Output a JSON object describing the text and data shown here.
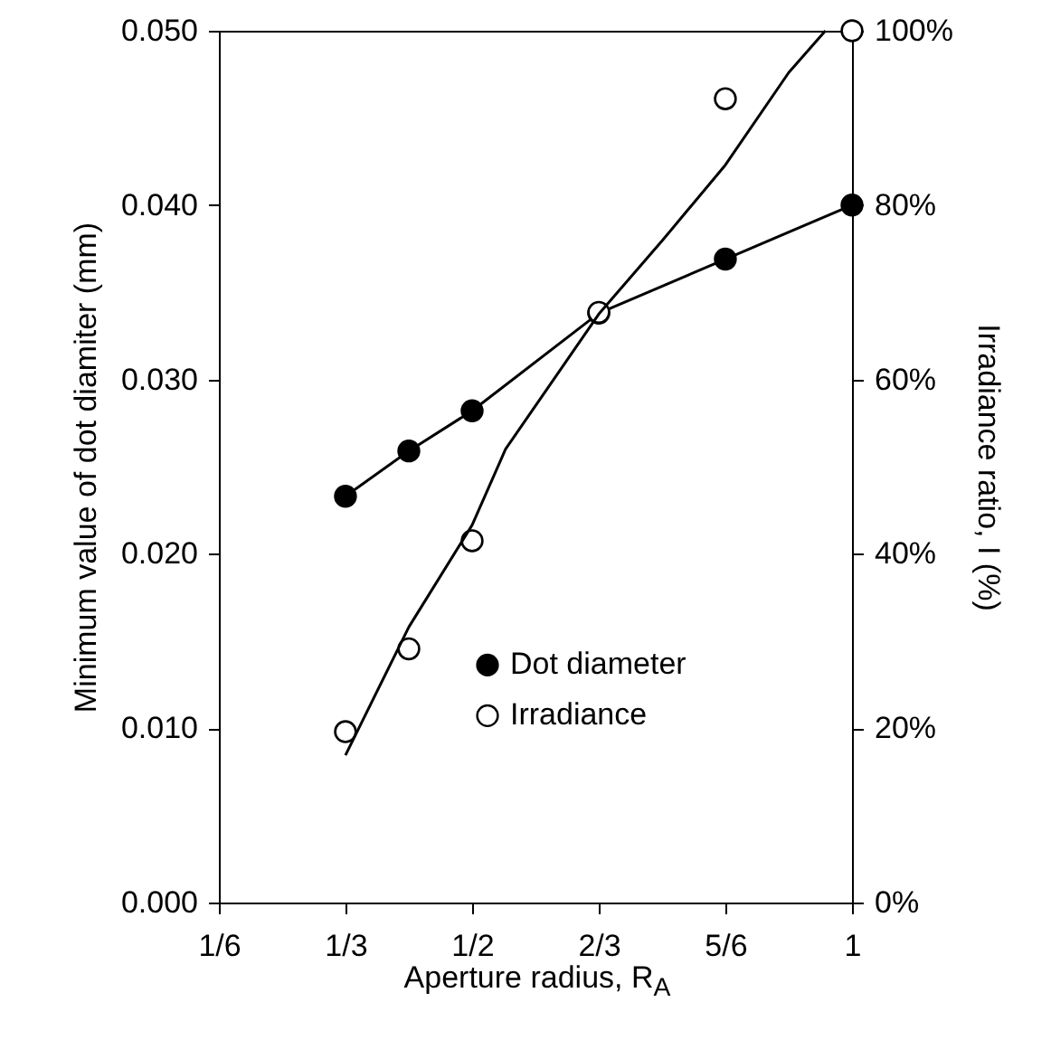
{
  "chart_data": {
    "type": "line",
    "xlabel": "Aperture radius, R$_{A}$",
    "ylabel": "Minimum value of dot diamiter (mm)",
    "y2label": "Irradiance ratio, I (%)",
    "xlim": [
      0.1667,
      1
    ],
    "xticks": [
      {
        "value": 0.1667,
        "label": "1/6"
      },
      {
        "value": 0.3333,
        "label": "1/3"
      },
      {
        "value": 0.5,
        "label": "1/2"
      },
      {
        "value": 0.6667,
        "label": "2/3"
      },
      {
        "value": 0.8333,
        "label": "5/6"
      },
      {
        "value": 1,
        "label": "1"
      }
    ],
    "ylim": [
      0,
      0.05
    ],
    "yticks": [
      {
        "value": 0,
        "label": "0.000"
      },
      {
        "value": 0.01,
        "label": "0.010"
      },
      {
        "value": 0.02,
        "label": "0.020"
      },
      {
        "value": 0.03,
        "label": "0.030"
      },
      {
        "value": 0.04,
        "label": "0.040"
      },
      {
        "value": 0.05,
        "label": "0.050"
      }
    ],
    "y2lim": [
      0,
      100
    ],
    "y2ticks": [
      {
        "value": 0,
        "label": "0%"
      },
      {
        "value": 20,
        "label": "20%"
      },
      {
        "value": 40,
        "label": "40%"
      },
      {
        "value": 60,
        "label": "60%"
      },
      {
        "value": 80,
        "label": "80%"
      },
      {
        "value": 100,
        "label": "100%"
      }
    ],
    "grid": false,
    "legend": "bottom",
    "series": [
      {
        "name": "Dot diameter",
        "marker": "circle",
        "color": "#000000",
        "x": [
          0.3333,
          0.4167,
          0.5,
          0.6667,
          0.8333,
          1
        ],
        "values": [
          0.0233,
          0.0259,
          0.0282,
          0.0338,
          0.0369,
          0.04
        ]
      },
      {
        "name": "Irradiance",
        "type": "scatter",
        "axis": "y2",
        "marker": "circle",
        "color": "#ffffff",
        "x": [
          0.3333,
          0.4167,
          0.5,
          0.6667,
          0.8333,
          1
        ],
        "values": [
          19.6,
          29.1,
          41.5,
          67.7,
          92.2,
          100
        ]
      },
      {
        "type": "line",
        "axis": "y2",
        "marker": "none",
        "color": "#000000",
        "x": [
          0.3333,
          0.4167,
          0.5,
          0.544,
          0.6667,
          0.75,
          0.8333,
          0.9167,
          0.965
        ],
        "values": [
          16.9,
          31.6,
          43.3,
          52,
          67.5,
          75.9,
          84.6,
          95.2,
          100
        ]
      }
    ]
  }
}
